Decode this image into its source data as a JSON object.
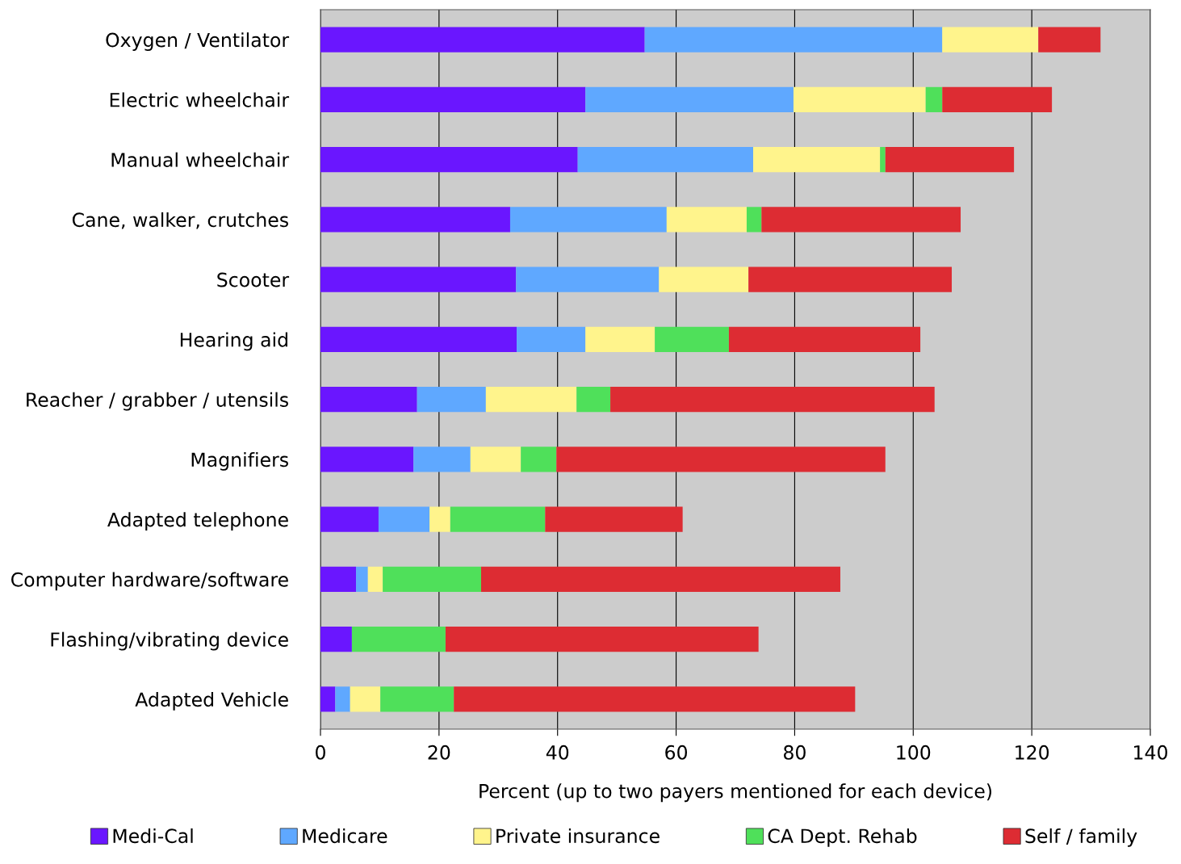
{
  "chart_data": {
    "type": "bar",
    "orientation": "horizontal",
    "stacked": true,
    "categories": [
      "Oxygen / Ventilator",
      "Electric wheelchair",
      "Manual wheelchair",
      "Cane, walker, crutches",
      "Scooter",
      "Hearing aid",
      "Reacher / grabber / utensils",
      "Magnifiers",
      "Adapted telephone",
      "Computer hardware/software",
      "Flashing/vibrating device",
      "Adapted Vehicle"
    ],
    "series": [
      {
        "name": "Medi-Cal",
        "color": "#6a16ff",
        "values": [
          54.7,
          44.7,
          43.4,
          32.0,
          33.0,
          33.1,
          16.3,
          15.7,
          9.8,
          6.0,
          5.3,
          2.5
        ]
      },
      {
        "name": "Medicare",
        "color": "#5fa8ff",
        "values": [
          50.2,
          35.1,
          29.6,
          26.4,
          24.1,
          11.6,
          11.6,
          9.6,
          8.6,
          2.0,
          0,
          2.5
        ]
      },
      {
        "name": "Private insurance",
        "color": "#fff48c",
        "values": [
          16.2,
          22.3,
          21.4,
          13.5,
          15.1,
          11.7,
          15.3,
          8.5,
          3.5,
          2.5,
          0,
          5.1
        ]
      },
      {
        "name": "CA Dept. Rehab",
        "color": "#4fe05a",
        "values": [
          0,
          2.8,
          0.9,
          2.5,
          0,
          12.5,
          5.7,
          6.0,
          16.0,
          16.6,
          15.8,
          12.4
        ]
      },
      {
        "name": "Self / family",
        "color": "#dd2c33",
        "values": [
          10.5,
          18.5,
          21.7,
          33.6,
          34.3,
          32.3,
          54.7,
          55.5,
          23.2,
          60.6,
          52.8,
          67.7
        ]
      }
    ],
    "xlabel": "Percent (up to two payers mentioned for each device)",
    "xlim": [
      0,
      140
    ],
    "xticks": [
      0,
      20,
      40,
      60,
      80,
      100,
      120,
      140
    ],
    "grid": "x",
    "legend": "bottom"
  }
}
